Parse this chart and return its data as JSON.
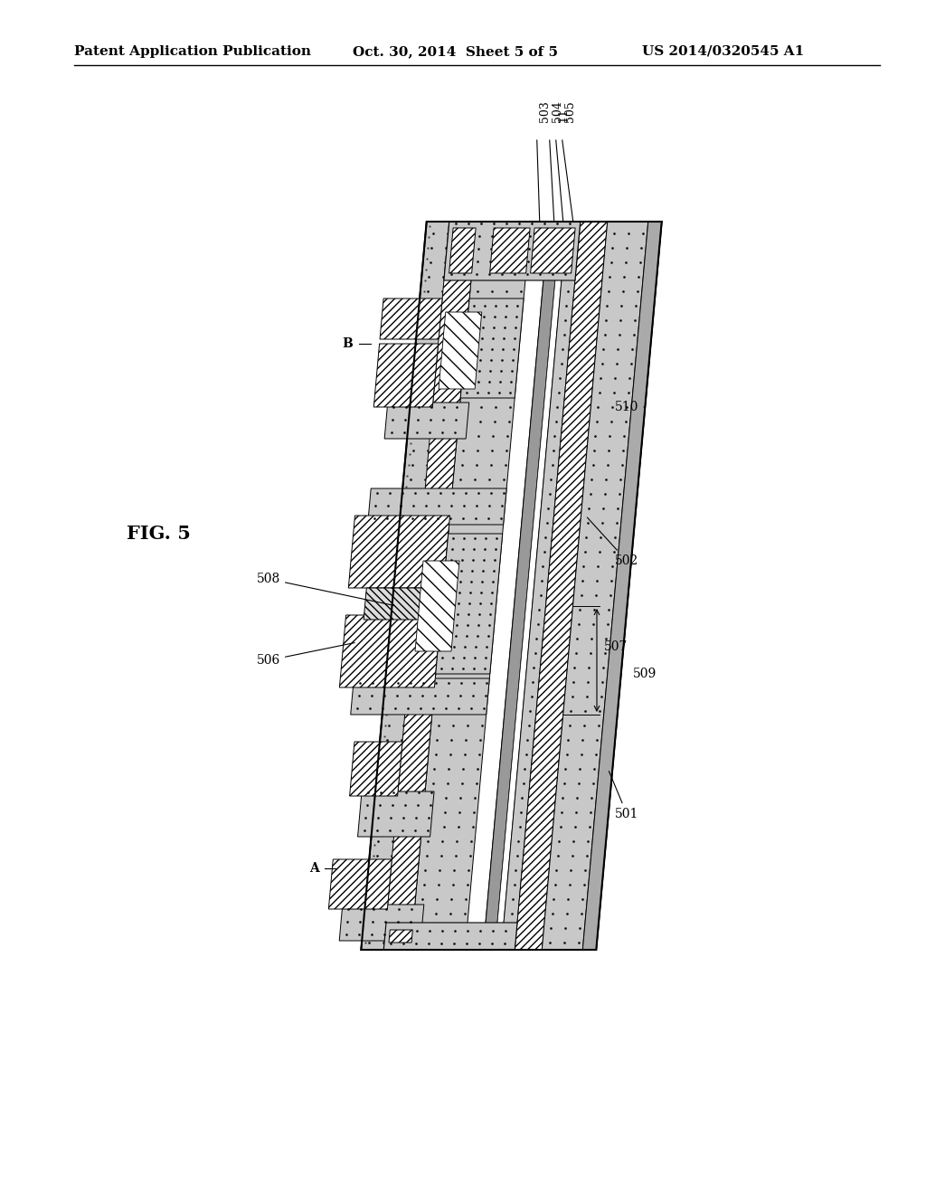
{
  "bg_color": "#ffffff",
  "header_left": "Patent Application Publication",
  "header_center": "Oct. 30, 2014  Sheet 5 of 5",
  "header_right": "US 2014/0320545 A1",
  "fig_label": "FIG. 5",
  "title_fontsize": 11,
  "label_fontsize": 10,
  "annot_fontsize": 10
}
